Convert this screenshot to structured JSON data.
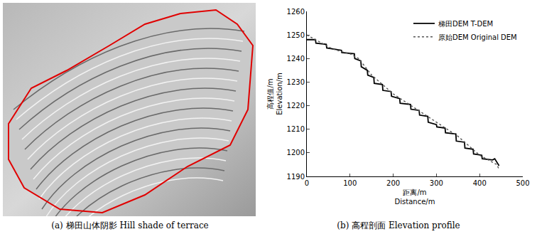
{
  "panel_a": {
    "caption": "(a) 梯田山体阴影 Hill shade of terrace"
  },
  "chart_data": {
    "type": "line",
    "caption": "(b) 高程剖面 Elevation profile",
    "xlabel": [
      "距离/m",
      "Distance/m"
    ],
    "ylabel": [
      "高程值/m",
      "Elevation/m"
    ],
    "xlim": [
      0,
      500
    ],
    "xticks": [
      0,
      100,
      200,
      300,
      400,
      500
    ],
    "ylim": [
      1190,
      1260
    ],
    "yticks": [
      1190,
      1200,
      1210,
      1220,
      1230,
      1240,
      1250,
      1260
    ],
    "legend": "top right",
    "grid": false,
    "series": [
      {
        "name": "梯田DEM T-DEM",
        "color": "#000000",
        "line_style": "solid",
        "x": [
          0,
          20,
          21,
          45,
          46,
          80,
          81,
          110,
          111,
          125,
          126,
          140,
          141,
          155,
          156,
          175,
          176,
          195,
          196,
          215,
          216,
          240,
          241,
          260,
          261,
          280,
          281,
          300,
          301,
          320,
          321,
          345,
          346,
          365,
          366,
          385,
          386,
          405,
          406,
          430,
          435,
          440,
          445
        ],
        "y": [
          1248,
          1248,
          1246.5,
          1246,
          1244.5,
          1243.5,
          1242.5,
          1242,
          1240,
          1239,
          1236.5,
          1235,
          1233,
          1232,
          1229.5,
          1229,
          1226.5,
          1226,
          1224,
          1223,
          1221,
          1220.5,
          1218.5,
          1218,
          1216,
          1215.5,
          1213,
          1212,
          1211,
          1210.5,
          1208.5,
          1208,
          1205,
          1204.5,
          1202,
          1201.5,
          1199.5,
          1199,
          1197.5,
          1197,
          1197.5,
          1196,
          1194.5
        ]
      },
      {
        "name": "原始DEM Original DEM",
        "color": "#555555",
        "line_style": "dotted",
        "x": [
          0,
          30,
          60,
          100,
          120,
          150,
          200,
          250,
          300,
          350,
          400,
          420,
          440,
          445
        ],
        "y": [
          1250,
          1247,
          1244,
          1242,
          1240,
          1233,
          1225,
          1219,
          1213,
          1207,
          1199,
          1197,
          1195,
          1193
        ]
      }
    ]
  }
}
